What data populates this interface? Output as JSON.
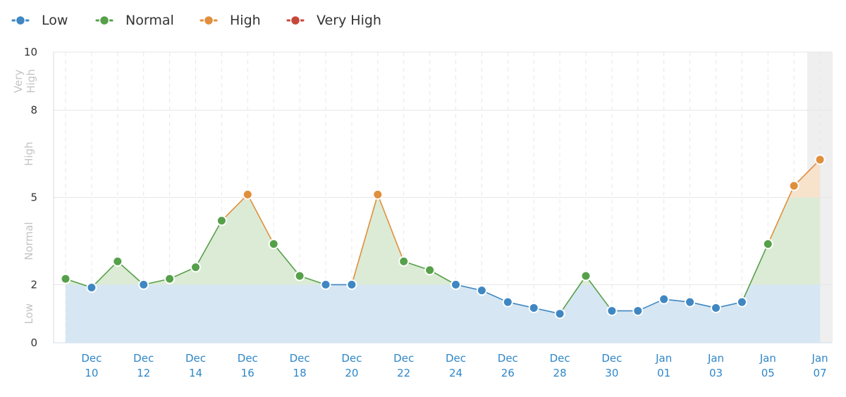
{
  "chart_data": {
    "type": "line",
    "legend": [
      {
        "label": "Low",
        "color": "#3f87c2"
      },
      {
        "label": "Normal",
        "color": "#56a04a"
      },
      {
        "label": "High",
        "color": "#e08f3c"
      },
      {
        "label": "Very High",
        "color": "#c6473b"
      }
    ],
    "legend_position": "top-left",
    "y_ticks": [
      "0",
      "2",
      "5",
      "8",
      "10"
    ],
    "ylim": [
      0,
      10
    ],
    "bands": [
      {
        "label": "Low",
        "from": 0,
        "to": 2
      },
      {
        "label": "Normal",
        "from": 2,
        "to": 5
      },
      {
        "label": "High",
        "from": 5,
        "to": 8
      },
      {
        "label": "Very High",
        "from": 8,
        "to": 10
      }
    ],
    "x_ticks": [
      {
        "month": "Dec",
        "day": "10",
        "date": "2023-12-10"
      },
      {
        "month": "Dec",
        "day": "12",
        "date": "2023-12-12"
      },
      {
        "month": "Dec",
        "day": "14",
        "date": "2023-12-14"
      },
      {
        "month": "Dec",
        "day": "16",
        "date": "2023-12-16"
      },
      {
        "month": "Dec",
        "day": "18",
        "date": "2023-12-18"
      },
      {
        "month": "Dec",
        "day": "20",
        "date": "2023-12-20"
      },
      {
        "month": "Dec",
        "day": "22",
        "date": "2023-12-22"
      },
      {
        "month": "Dec",
        "day": "24",
        "date": "2023-12-24"
      },
      {
        "month": "Dec",
        "day": "26",
        "date": "2023-12-26"
      },
      {
        "month": "Dec",
        "day": "28",
        "date": "2023-12-28"
      },
      {
        "month": "Dec",
        "day": "30",
        "date": "2023-12-30"
      },
      {
        "month": "Jan",
        "day": "01",
        "date": "2024-01-01"
      },
      {
        "month": "Jan",
        "day": "03",
        "date": "2024-01-03"
      },
      {
        "month": "Jan",
        "day": "05",
        "date": "2024-01-05"
      },
      {
        "month": "Jan",
        "day": "07",
        "date": "2024-01-07"
      }
    ],
    "points": [
      {
        "date": "2023-12-09",
        "value": 2.2
      },
      {
        "date": "2023-12-10",
        "value": 1.9
      },
      {
        "date": "2023-12-11",
        "value": 2.8
      },
      {
        "date": "2023-12-12",
        "value": 2.0
      },
      {
        "date": "2023-12-13",
        "value": 2.2
      },
      {
        "date": "2023-12-14",
        "value": 2.6
      },
      {
        "date": "2023-12-15",
        "value": 4.2
      },
      {
        "date": "2023-12-16",
        "value": 5.1
      },
      {
        "date": "2023-12-17",
        "value": 3.4
      },
      {
        "date": "2023-12-18",
        "value": 2.3
      },
      {
        "date": "2023-12-19",
        "value": 2.0
      },
      {
        "date": "2023-12-20",
        "value": 2.0
      },
      {
        "date": "2023-12-21",
        "value": 5.1
      },
      {
        "date": "2023-12-22",
        "value": 2.8
      },
      {
        "date": "2023-12-23",
        "value": 2.5
      },
      {
        "date": "2023-12-24",
        "value": 2.0
      },
      {
        "date": "2023-12-25",
        "value": 1.8
      },
      {
        "date": "2023-12-26",
        "value": 1.4
      },
      {
        "date": "2023-12-27",
        "value": 1.2
      },
      {
        "date": "2023-12-28",
        "value": 1.0
      },
      {
        "date": "2023-12-29",
        "value": 2.3
      },
      {
        "date": "2023-12-30",
        "value": 1.1
      },
      {
        "date": "2023-12-31",
        "value": 1.1
      },
      {
        "date": "2024-01-01",
        "value": 1.5
      },
      {
        "date": "2024-01-02",
        "value": 1.4
      },
      {
        "date": "2024-01-03",
        "value": 1.2
      },
      {
        "date": "2024-01-04",
        "value": 1.4
      },
      {
        "date": "2024-01-05",
        "value": 3.4
      },
      {
        "date": "2024-01-06",
        "value": 5.4
      },
      {
        "date": "2024-01-07",
        "value": 6.3
      }
    ],
    "highlighted_date": "2024-01-07",
    "grid": true
  }
}
